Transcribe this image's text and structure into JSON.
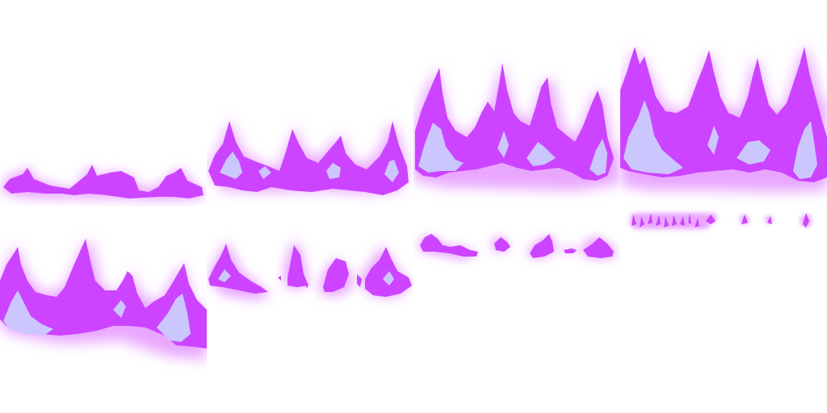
{
  "sprite_sheet": {
    "grid": {
      "columns": 4,
      "rows": 2
    },
    "frame_count": 8,
    "colors": {
      "background": "#ffffff",
      "flame_glow": "#e9a6ff",
      "flame_body": "#cc44ff",
      "flame_core": "#ccc6ff"
    },
    "frames": [
      {
        "index": 1,
        "phase": "ignite-low"
      },
      {
        "index": 2,
        "phase": "rising"
      },
      {
        "index": 3,
        "phase": "tall"
      },
      {
        "index": 4,
        "phase": "peak"
      },
      {
        "index": 5,
        "phase": "peak-settling"
      },
      {
        "index": 6,
        "phase": "breaking-up"
      },
      {
        "index": 7,
        "phase": "dying"
      },
      {
        "index": 8,
        "phase": "embers"
      }
    ]
  }
}
